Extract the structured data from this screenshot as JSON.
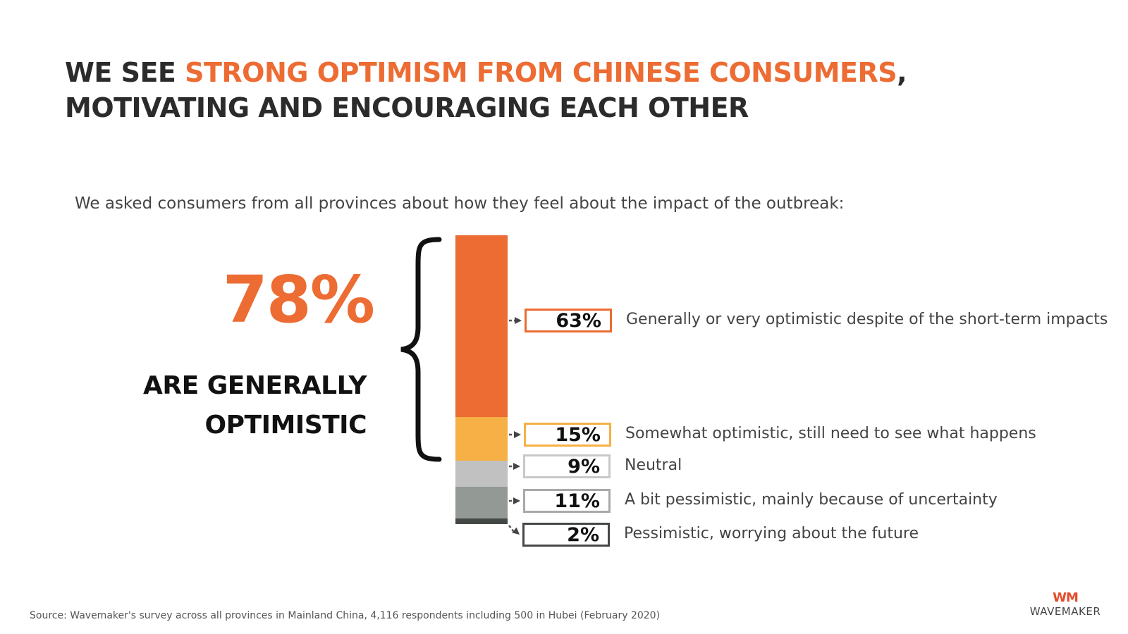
{
  "title": {
    "part1": "WE SEE ",
    "highlight": "STRONG OPTIMISM FROM CHINESE CONSUMERS",
    "part2": ",",
    "line2": "MOTIVATING AND ENCOURAGING EACH OTHER"
  },
  "intro": "We asked consumers from all provinces about how they feel about the impact of the outbreak:",
  "headline": {
    "value": "78%",
    "label_line1": "ARE GENERALLY",
    "label_line2": "OPTIMISTIC"
  },
  "chart_data": {
    "type": "bar",
    "stacked": true,
    "orientation": "vertical",
    "categories": [
      "Generally or very optimistic despite of the short-term impacts",
      "Somewhat optimistic, still need to see what happens",
      "Neutral",
      "A bit pessimistic, mainly because of uncertainty",
      "Pessimistic, worrying about the future"
    ],
    "values": [
      63,
      15,
      9,
      11,
      2
    ],
    "value_labels": [
      "63%",
      "15%",
      "9%",
      "11%",
      "2%"
    ],
    "colors": [
      "#ec6c33",
      "#f6b045",
      "#c1c1c1",
      "#939994",
      "#454945"
    ],
    "unit": "%"
  },
  "source": "Source: Wavemaker's survey across all provinces in Mainland China, 4,116 respondents including 500 in Hubei (February 2020)",
  "logo": {
    "mark": "WM",
    "text": "WAVEMAKER"
  }
}
